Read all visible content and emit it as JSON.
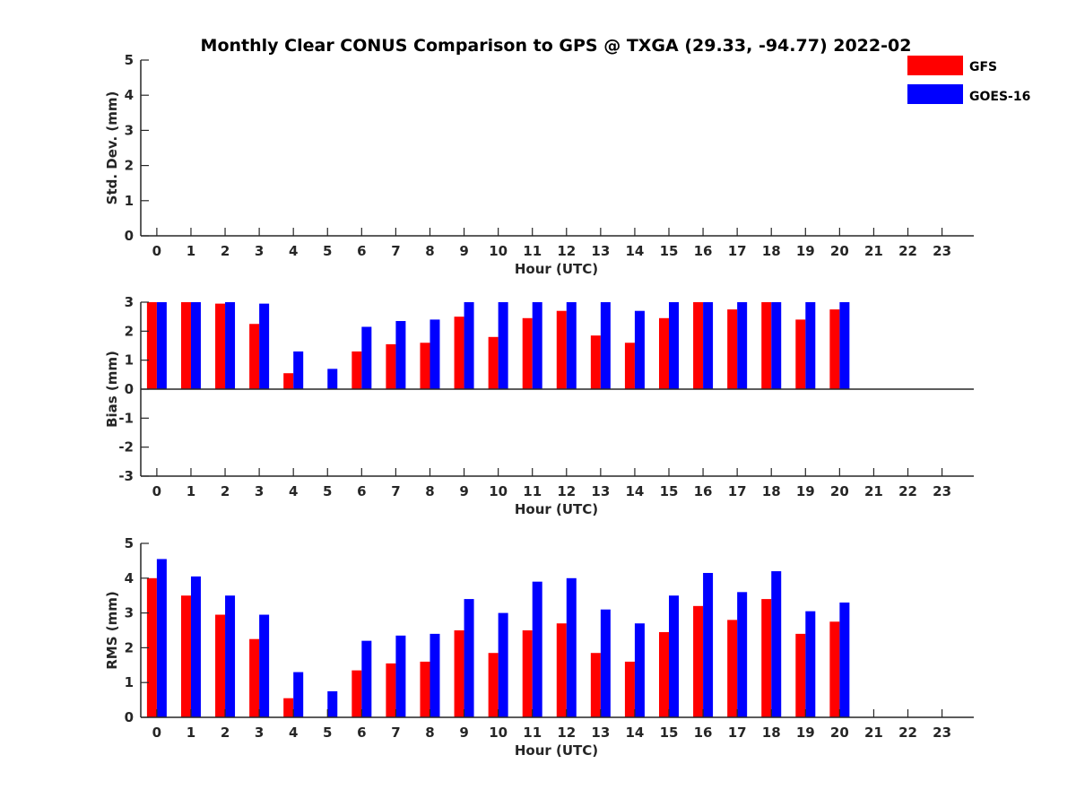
{
  "title": "Monthly Clear CONUS Comparison to GPS @ TXGA (29.33, -94.77) 2022-02",
  "legend": {
    "placement": "top-right",
    "items": [
      {
        "label": "GFS",
        "color": "#ff0000"
      },
      {
        "label": "GOES-16",
        "color": "#0000ff"
      }
    ]
  },
  "chart_data": [
    {
      "type": "bar",
      "xlabel": "Hour (UTC)",
      "ylabel": "Std. Dev. (mm)",
      "ylim": [
        0,
        5
      ],
      "yticks": [
        "0",
        "1",
        "2",
        "3",
        "4",
        "5"
      ],
      "categories": [
        "0",
        "1",
        "2",
        "3",
        "4",
        "5",
        "6",
        "7",
        "8",
        "9",
        "10",
        "11",
        "12",
        "13",
        "14",
        "15",
        "16",
        "17",
        "18",
        "19",
        "20",
        "21",
        "22",
        "23"
      ],
      "series": [
        {
          "name": "GFS",
          "color": "#ff0000",
          "values": [
            null,
            null,
            null,
            null,
            null,
            null,
            null,
            null,
            null,
            null,
            null,
            null,
            null,
            null,
            null,
            null,
            null,
            null,
            null,
            null,
            null,
            null,
            null,
            null
          ]
        },
        {
          "name": "GOES-16",
          "color": "#0000ff",
          "values": [
            null,
            null,
            null,
            null,
            null,
            null,
            null,
            null,
            null,
            null,
            null,
            null,
            null,
            null,
            null,
            null,
            null,
            null,
            null,
            null,
            null,
            null,
            null,
            null
          ]
        }
      ]
    },
    {
      "type": "bar",
      "xlabel": "Hour (UTC)",
      "ylabel": "Bias (mm)",
      "ylim": [
        -3,
        3
      ],
      "yticks": [
        "-3",
        "-2",
        "-1",
        "0",
        "1",
        "2",
        "3"
      ],
      "categories": [
        "0",
        "1",
        "2",
        "3",
        "4",
        "5",
        "6",
        "7",
        "8",
        "9",
        "10",
        "11",
        "12",
        "13",
        "14",
        "15",
        "16",
        "17",
        "18",
        "19",
        "20",
        "21",
        "22",
        "23"
      ],
      "series": [
        {
          "name": "GFS",
          "color": "#ff0000",
          "values": [
            3.0,
            3.0,
            2.95,
            2.25,
            0.55,
            null,
            1.3,
            1.55,
            1.6,
            2.5,
            1.8,
            2.45,
            2.7,
            1.85,
            1.6,
            2.45,
            3.0,
            2.75,
            3.0,
            2.4,
            2.75,
            null,
            null,
            null
          ]
        },
        {
          "name": "GOES-16",
          "color": "#0000ff",
          "values": [
            3.0,
            3.0,
            3.0,
            2.95,
            1.3,
            0.7,
            2.15,
            2.35,
            2.4,
            3.0,
            3.0,
            3.0,
            3.0,
            3.0,
            2.7,
            3.0,
            3.0,
            3.0,
            3.0,
            3.0,
            3.0,
            null,
            null,
            null
          ]
        }
      ]
    },
    {
      "type": "bar",
      "xlabel": "Hour (UTC)",
      "ylabel": "RMS (mm)",
      "ylim": [
        0,
        5
      ],
      "yticks": [
        "0",
        "1",
        "2",
        "3",
        "4",
        "5"
      ],
      "categories": [
        "0",
        "1",
        "2",
        "3",
        "4",
        "5",
        "6",
        "7",
        "8",
        "9",
        "10",
        "11",
        "12",
        "13",
        "14",
        "15",
        "16",
        "17",
        "18",
        "19",
        "20",
        "21",
        "22",
        "23"
      ],
      "series": [
        {
          "name": "GFS",
          "color": "#ff0000",
          "values": [
            4.0,
            3.5,
            2.95,
            2.25,
            0.55,
            null,
            1.35,
            1.55,
            1.6,
            2.5,
            1.85,
            2.5,
            2.7,
            1.85,
            1.6,
            2.45,
            3.2,
            2.8,
            3.4,
            2.4,
            2.75,
            null,
            null,
            null
          ]
        },
        {
          "name": "GOES-16",
          "color": "#0000ff",
          "values": [
            4.55,
            4.05,
            3.5,
            2.95,
            1.3,
            0.75,
            2.2,
            2.35,
            2.4,
            3.4,
            3.0,
            3.9,
            4.0,
            3.1,
            2.7,
            3.5,
            4.15,
            3.6,
            4.2,
            3.05,
            3.3,
            null,
            null,
            null
          ]
        }
      ]
    }
  ]
}
